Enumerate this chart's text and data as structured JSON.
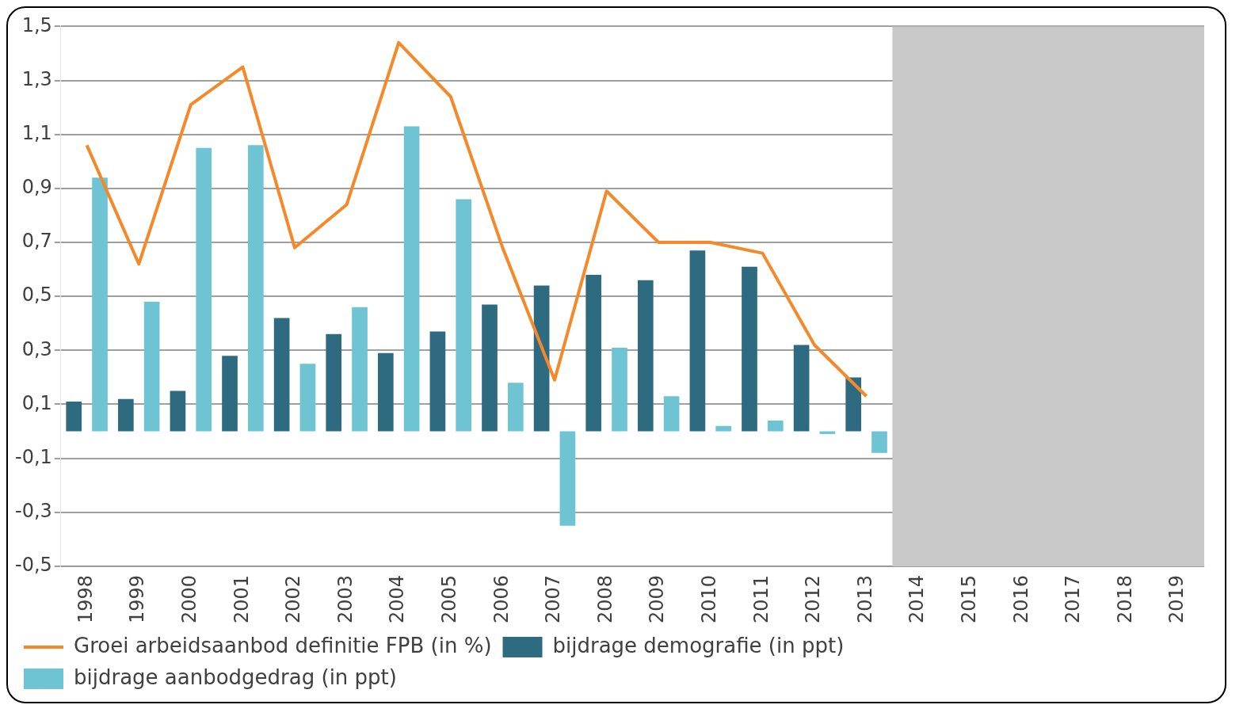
{
  "chart_data": {
    "type": "bar",
    "categories": [
      "1998",
      "1999",
      "2000",
      "2001",
      "2002",
      "2003",
      "2004",
      "2005",
      "2006",
      "2007",
      "2008",
      "2009",
      "2010",
      "2011",
      "2012",
      "2013",
      "2014",
      "2015",
      "2016",
      "2017",
      "2018",
      "2019"
    ],
    "series": [
      {
        "name": "bijdrage demografie (in ppt)",
        "color": "#2e6a80",
        "values": [
          0.11,
          0.12,
          0.15,
          0.28,
          0.42,
          0.36,
          0.29,
          0.37,
          0.47,
          0.54,
          0.58,
          0.56,
          0.67,
          0.61,
          0.32,
          0.2,
          null,
          null,
          null,
          null,
          null,
          null
        ]
      },
      {
        "name": "bijdrage aanbodgedrag (in ppt)",
        "color": "#6ec4d2",
        "values": [
          0.94,
          0.48,
          1.05,
          1.06,
          0.25,
          0.46,
          1.13,
          0.86,
          0.18,
          -0.35,
          0.31,
          0.13,
          0.02,
          0.04,
          -0.01,
          -0.08,
          null,
          null,
          null,
          null,
          null,
          null
        ]
      },
      {
        "name": "Groei arbeidsaanbod definitie FPB (in %)",
        "type": "line",
        "color": "#f5892a",
        "values": [
          1.06,
          0.62,
          1.21,
          1.35,
          0.68,
          0.84,
          1.44,
          1.24,
          0.68,
          0.19,
          0.89,
          0.7,
          0.7,
          0.66,
          0.32,
          0.13,
          null,
          null,
          null,
          null,
          null,
          null
        ]
      }
    ],
    "ylim": [
      -0.5,
      1.5
    ],
    "yticks": [
      {
        "value": -0.5,
        "label": "-0,5"
      },
      {
        "value": -0.3,
        "label": "-0,3"
      },
      {
        "value": -0.1,
        "label": "-0,1"
      },
      {
        "value": 0.1,
        "label": "0,1"
      },
      {
        "value": 0.3,
        "label": "0,3"
      },
      {
        "value": 0.5,
        "label": "0,5"
      },
      {
        "value": 0.7,
        "label": "0,7"
      },
      {
        "value": 0.9,
        "label": "0,9"
      },
      {
        "value": 1.1,
        "label": "1,1"
      },
      {
        "value": 1.3,
        "label": "1,3"
      },
      {
        "value": 1.5,
        "label": "1,5"
      }
    ],
    "bands": [
      {
        "axis": "x",
        "from": "2014",
        "to": "2019",
        "color": "#c8c8c8"
      }
    ],
    "grid": "y",
    "legend": "bottom",
    "marker": "none"
  }
}
